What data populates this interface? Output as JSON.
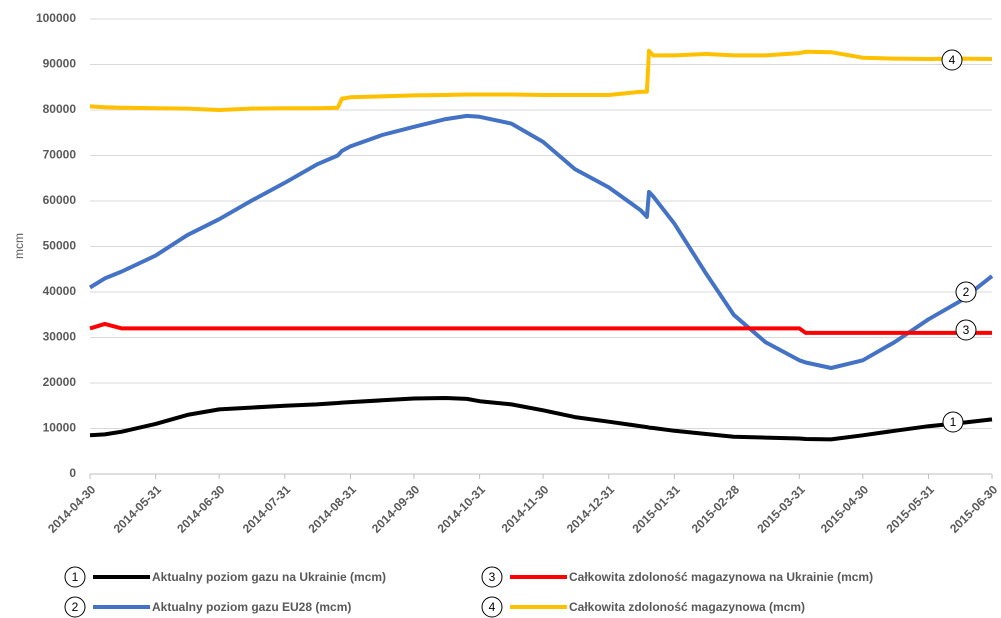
{
  "chart_data": {
    "type": "line",
    "y_label": "mcm",
    "x": [
      "2014-04-30",
      "2014-05-07",
      "2014-05-15",
      "2014-05-31",
      "2014-06-15",
      "2014-06-30",
      "2014-07-15",
      "2014-07-31",
      "2014-08-15",
      "2014-08-25",
      "2014-08-27",
      "2014-08-31",
      "2014-09-15",
      "2014-09-30",
      "2014-10-15",
      "2014-10-25",
      "2014-10-31",
      "2014-11-15",
      "2014-11-30",
      "2014-12-15",
      "2014-12-31",
      "2015-01-15",
      "2015-01-18",
      "2015-01-19",
      "2015-01-21",
      "2015-01-31",
      "2015-02-15",
      "2015-02-28",
      "2015-03-15",
      "2015-03-31",
      "2015-04-03",
      "2015-04-15",
      "2015-04-30",
      "2015-05-15",
      "2015-05-31",
      "2015-06-15",
      "2015-06-30"
    ],
    "series": [
      {
        "name": "Aktualny poziom gazu na Ukrainie (mcm)",
        "tag": "1",
        "color": "#000000",
        "values": [
          8500,
          8700,
          9300,
          11000,
          13000,
          14200,
          14600,
          15000,
          15300,
          15600,
          15700,
          15800,
          16200,
          16600,
          16700,
          16500,
          16000,
          15300,
          14000,
          12500,
          11500,
          10500,
          10300,
          10200,
          10100,
          9500,
          8800,
          8200,
          8000,
          7800,
          7700,
          7600,
          8500,
          9500,
          10500,
          11200,
          12000
        ]
      },
      {
        "name": "Aktualny poziom gazu EU28 (mcm)",
        "tag": "2",
        "color": "#4472c4",
        "values": [
          41000,
          43000,
          44500,
          48000,
          52500,
          56000,
          60000,
          64000,
          68000,
          70000,
          71000,
          72000,
          74500,
          76300,
          78000,
          78700,
          78500,
          77000,
          73000,
          67000,
          63000,
          58000,
          56500,
          62000,
          61000,
          55000,
          44000,
          35000,
          29000,
          25000,
          24500,
          23300,
          25000,
          29000,
          34000,
          38000,
          43500
        ]
      },
      {
        "name": "Całkowita zdoloność magazynowa na Ukrainie (mcm)",
        "tag": "3",
        "color": "#ff0000",
        "values": [
          32000,
          33000,
          32000,
          32000,
          32000,
          32000,
          32000,
          32000,
          32000,
          32000,
          32000,
          32000,
          32000,
          32000,
          32000,
          32000,
          32000,
          32000,
          32000,
          32000,
          32000,
          32000,
          32000,
          32000,
          32000,
          32000,
          32000,
          32000,
          32000,
          32000,
          31000,
          31000,
          31000,
          31000,
          31000,
          31000,
          31000
        ]
      },
      {
        "name": "Całkowita zdoloność magazynowa (mcm)",
        "tag": "4",
        "color": "#ffc000",
        "values": [
          80800,
          80600,
          80500,
          80400,
          80300,
          80000,
          80300,
          80400,
          80400,
          80500,
          82500,
          82800,
          83000,
          83200,
          83300,
          83400,
          83400,
          83400,
          83300,
          83300,
          83300,
          84000,
          84000,
          93000,
          92000,
          92000,
          92300,
          92000,
          92000,
          92500,
          92800,
          92700,
          91500,
          91300,
          91200,
          91300,
          91200
        ]
      }
    ],
    "xlim": [
      "2014-04-30",
      "2015-06-30"
    ],
    "xticks": [
      "2014-04-30",
      "2014-05-31",
      "2014-06-30",
      "2014-07-31",
      "2014-08-31",
      "2014-09-30",
      "2014-10-31",
      "2014-11-30",
      "2014-12-31",
      "2015-01-31",
      "2015-02-28",
      "2015-03-31",
      "2015-04-30",
      "2015-05-31",
      "2015-06-30"
    ],
    "ylim": [
      0,
      100000
    ],
    "yticks": [
      0,
      10000,
      20000,
      30000,
      40000,
      50000,
      60000,
      70000,
      80000,
      90000,
      100000
    ],
    "grid": true
  }
}
